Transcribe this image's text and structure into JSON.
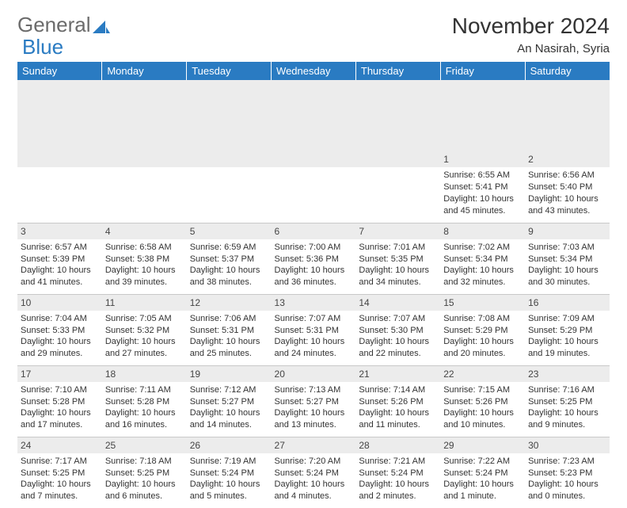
{
  "brand": {
    "word1": "General",
    "word2": "Blue"
  },
  "colors": {
    "header_bg": "#2a7bc2",
    "header_text": "#ffffff",
    "daynum_bg": "#ececec",
    "text": "#333333",
    "border": "#c9c9c9",
    "logo_gray": "#6b6b6b",
    "logo_blue": "#2a7bc2"
  },
  "title": "November 2024",
  "location": "An Nasirah, Syria",
  "dayHeaders": [
    "Sunday",
    "Monday",
    "Tuesday",
    "Wednesday",
    "Thursday",
    "Friday",
    "Saturday"
  ],
  "weeks": [
    [
      {
        "n": "",
        "sr": "",
        "ss": "",
        "dl": ""
      },
      {
        "n": "",
        "sr": "",
        "ss": "",
        "dl": ""
      },
      {
        "n": "",
        "sr": "",
        "ss": "",
        "dl": ""
      },
      {
        "n": "",
        "sr": "",
        "ss": "",
        "dl": ""
      },
      {
        "n": "",
        "sr": "",
        "ss": "",
        "dl": ""
      },
      {
        "n": "1",
        "sr": "Sunrise: 6:55 AM",
        "ss": "Sunset: 5:41 PM",
        "dl": "Daylight: 10 hours and 45 minutes."
      },
      {
        "n": "2",
        "sr": "Sunrise: 6:56 AM",
        "ss": "Sunset: 5:40 PM",
        "dl": "Daylight: 10 hours and 43 minutes."
      }
    ],
    [
      {
        "n": "3",
        "sr": "Sunrise: 6:57 AM",
        "ss": "Sunset: 5:39 PM",
        "dl": "Daylight: 10 hours and 41 minutes."
      },
      {
        "n": "4",
        "sr": "Sunrise: 6:58 AM",
        "ss": "Sunset: 5:38 PM",
        "dl": "Daylight: 10 hours and 39 minutes."
      },
      {
        "n": "5",
        "sr": "Sunrise: 6:59 AM",
        "ss": "Sunset: 5:37 PM",
        "dl": "Daylight: 10 hours and 38 minutes."
      },
      {
        "n": "6",
        "sr": "Sunrise: 7:00 AM",
        "ss": "Sunset: 5:36 PM",
        "dl": "Daylight: 10 hours and 36 minutes."
      },
      {
        "n": "7",
        "sr": "Sunrise: 7:01 AM",
        "ss": "Sunset: 5:35 PM",
        "dl": "Daylight: 10 hours and 34 minutes."
      },
      {
        "n": "8",
        "sr": "Sunrise: 7:02 AM",
        "ss": "Sunset: 5:34 PM",
        "dl": "Daylight: 10 hours and 32 minutes."
      },
      {
        "n": "9",
        "sr": "Sunrise: 7:03 AM",
        "ss": "Sunset: 5:34 PM",
        "dl": "Daylight: 10 hours and 30 minutes."
      }
    ],
    [
      {
        "n": "10",
        "sr": "Sunrise: 7:04 AM",
        "ss": "Sunset: 5:33 PM",
        "dl": "Daylight: 10 hours and 29 minutes."
      },
      {
        "n": "11",
        "sr": "Sunrise: 7:05 AM",
        "ss": "Sunset: 5:32 PM",
        "dl": "Daylight: 10 hours and 27 minutes."
      },
      {
        "n": "12",
        "sr": "Sunrise: 7:06 AM",
        "ss": "Sunset: 5:31 PM",
        "dl": "Daylight: 10 hours and 25 minutes."
      },
      {
        "n": "13",
        "sr": "Sunrise: 7:07 AM",
        "ss": "Sunset: 5:31 PM",
        "dl": "Daylight: 10 hours and 24 minutes."
      },
      {
        "n": "14",
        "sr": "Sunrise: 7:07 AM",
        "ss": "Sunset: 5:30 PM",
        "dl": "Daylight: 10 hours and 22 minutes."
      },
      {
        "n": "15",
        "sr": "Sunrise: 7:08 AM",
        "ss": "Sunset: 5:29 PM",
        "dl": "Daylight: 10 hours and 20 minutes."
      },
      {
        "n": "16",
        "sr": "Sunrise: 7:09 AM",
        "ss": "Sunset: 5:29 PM",
        "dl": "Daylight: 10 hours and 19 minutes."
      }
    ],
    [
      {
        "n": "17",
        "sr": "Sunrise: 7:10 AM",
        "ss": "Sunset: 5:28 PM",
        "dl": "Daylight: 10 hours and 17 minutes."
      },
      {
        "n": "18",
        "sr": "Sunrise: 7:11 AM",
        "ss": "Sunset: 5:28 PM",
        "dl": "Daylight: 10 hours and 16 minutes."
      },
      {
        "n": "19",
        "sr": "Sunrise: 7:12 AM",
        "ss": "Sunset: 5:27 PM",
        "dl": "Daylight: 10 hours and 14 minutes."
      },
      {
        "n": "20",
        "sr": "Sunrise: 7:13 AM",
        "ss": "Sunset: 5:27 PM",
        "dl": "Daylight: 10 hours and 13 minutes."
      },
      {
        "n": "21",
        "sr": "Sunrise: 7:14 AM",
        "ss": "Sunset: 5:26 PM",
        "dl": "Daylight: 10 hours and 11 minutes."
      },
      {
        "n": "22",
        "sr": "Sunrise: 7:15 AM",
        "ss": "Sunset: 5:26 PM",
        "dl": "Daylight: 10 hours and 10 minutes."
      },
      {
        "n": "23",
        "sr": "Sunrise: 7:16 AM",
        "ss": "Sunset: 5:25 PM",
        "dl": "Daylight: 10 hours and 9 minutes."
      }
    ],
    [
      {
        "n": "24",
        "sr": "Sunrise: 7:17 AM",
        "ss": "Sunset: 5:25 PM",
        "dl": "Daylight: 10 hours and 7 minutes."
      },
      {
        "n": "25",
        "sr": "Sunrise: 7:18 AM",
        "ss": "Sunset: 5:25 PM",
        "dl": "Daylight: 10 hours and 6 minutes."
      },
      {
        "n": "26",
        "sr": "Sunrise: 7:19 AM",
        "ss": "Sunset: 5:24 PM",
        "dl": "Daylight: 10 hours and 5 minutes."
      },
      {
        "n": "27",
        "sr": "Sunrise: 7:20 AM",
        "ss": "Sunset: 5:24 PM",
        "dl": "Daylight: 10 hours and 4 minutes."
      },
      {
        "n": "28",
        "sr": "Sunrise: 7:21 AM",
        "ss": "Sunset: 5:24 PM",
        "dl": "Daylight: 10 hours and 2 minutes."
      },
      {
        "n": "29",
        "sr": "Sunrise: 7:22 AM",
        "ss": "Sunset: 5:24 PM",
        "dl": "Daylight: 10 hours and 1 minute."
      },
      {
        "n": "30",
        "sr": "Sunrise: 7:23 AM",
        "ss": "Sunset: 5:23 PM",
        "dl": "Daylight: 10 hours and 0 minutes."
      }
    ]
  ]
}
